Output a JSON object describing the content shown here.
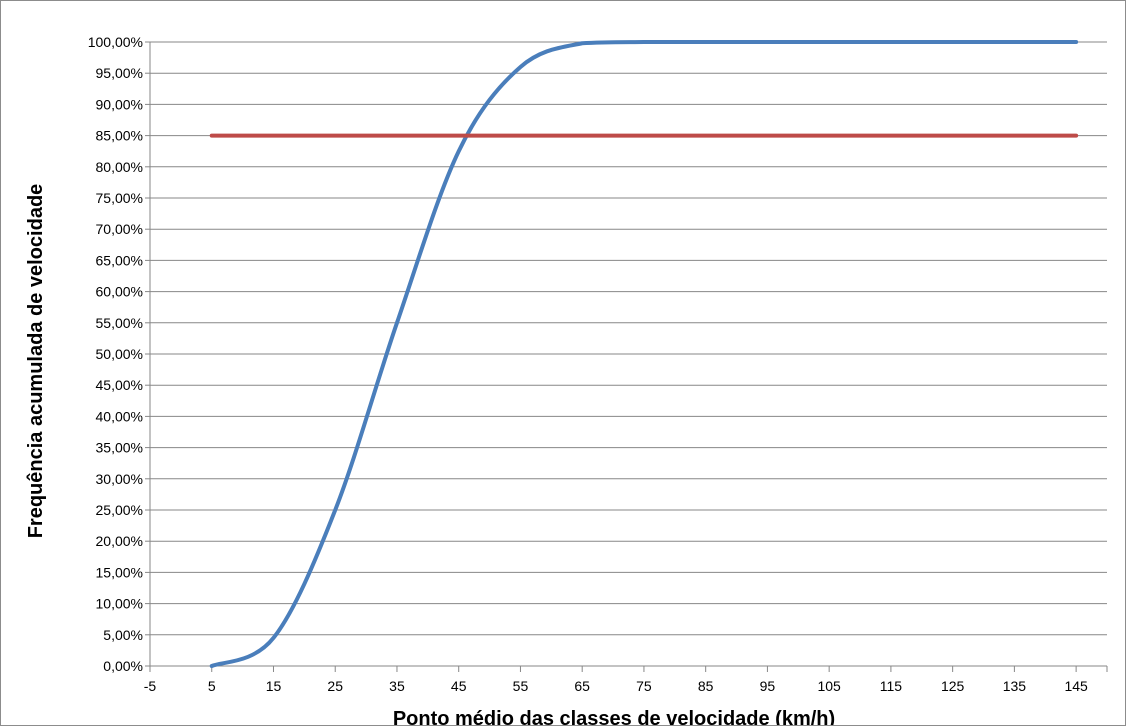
{
  "chart_data": {
    "type": "line",
    "title": "",
    "xlabel": "Ponto médio das classes de velocidade (km/h)",
    "ylabel": "Frequência acumulada de velocidade",
    "xlim": [
      -5,
      150
    ],
    "ylim": [
      0,
      100
    ],
    "x_ticks": [
      "-5",
      "5",
      "15",
      "25",
      "35",
      "45",
      "55",
      "65",
      "75",
      "85",
      "95",
      "105",
      "115",
      "125",
      "135",
      "145"
    ],
    "y_ticks": [
      "0,00%",
      "5,00%",
      "10,00%",
      "15,00%",
      "20,00%",
      "25,00%",
      "30,00%",
      "35,00%",
      "40,00%",
      "45,00%",
      "50,00%",
      "55,00%",
      "60,00%",
      "65,00%",
      "70,00%",
      "75,00%",
      "80,00%",
      "85,00%",
      "90,00%",
      "95,00%",
      "100,00%"
    ],
    "grid": true,
    "legend": "none",
    "series": [
      {
        "color": "#4a7ebb",
        "x": [
          5,
          15,
          25,
          35,
          45,
          55,
          65,
          75,
          85,
          95,
          105,
          115,
          125,
          135,
          145
        ],
        "y": [
          0.0,
          4.5,
          25.0,
          55.0,
          82.5,
          96.0,
          99.8,
          100.0,
          100.0,
          100.0,
          100.0,
          100.0,
          100.0,
          100.0,
          100.0
        ]
      },
      {
        "color": "#be4b48",
        "x": [
          5,
          145
        ],
        "y": [
          85.0,
          85.0
        ]
      }
    ]
  }
}
